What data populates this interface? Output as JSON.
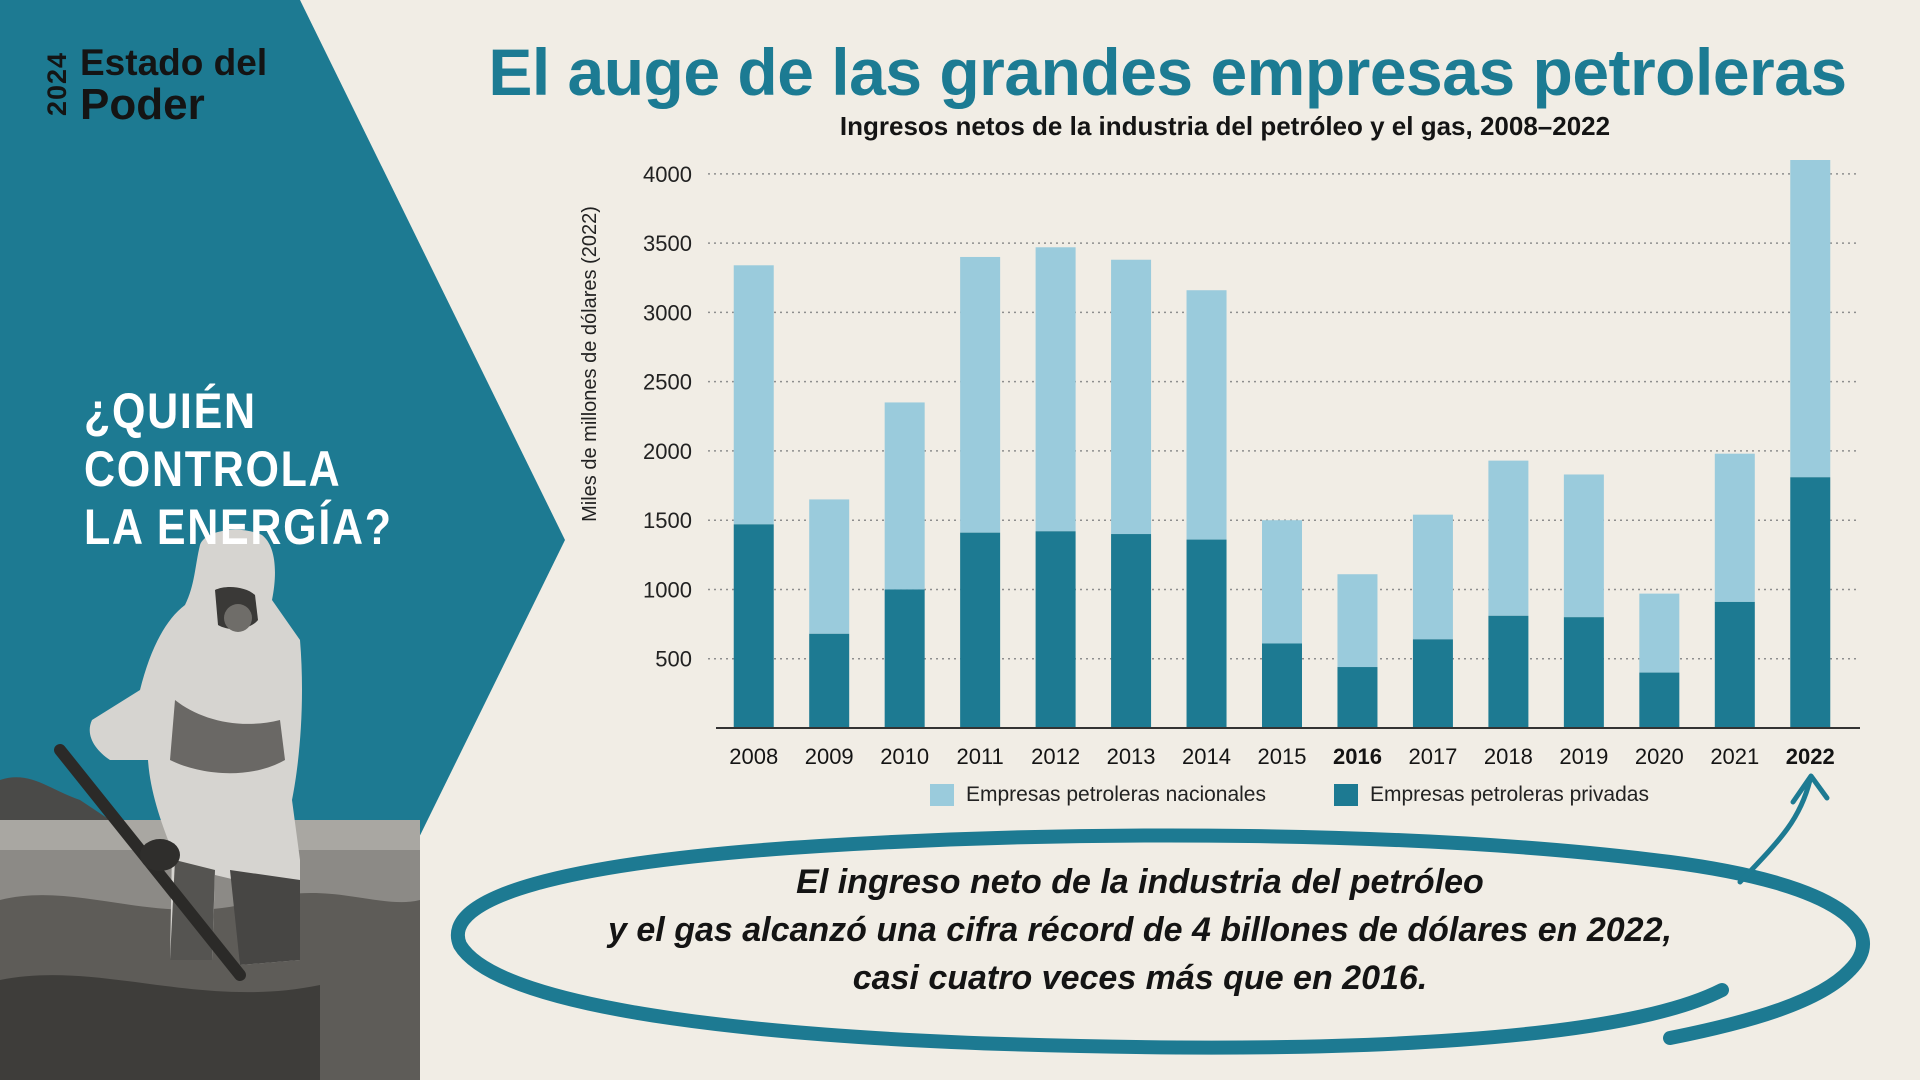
{
  "brand": {
    "year": "2024",
    "line1": "Estado del",
    "line2": "Poder"
  },
  "question": {
    "line1": "¿QUIÉN CONTROLA",
    "line2": "LA ENERGÍA?"
  },
  "colors": {
    "accent": "#1c7b93",
    "private": "#1d7a92",
    "national": "#9acbdc",
    "background": "#f1ede5",
    "text": "#141414"
  },
  "chart_data": {
    "type": "bar",
    "stacked": true,
    "title": "El auge de las grandes empresas petroleras",
    "subtitle": "Ingresos netos de la industria del petróleo y el gas, 2008–2022",
    "ylabel": "Miles de millones de dólares (2022)",
    "xlabel": "",
    "ylim": [
      0,
      4100
    ],
    "yticks": [
      500,
      1000,
      1500,
      2000,
      2500,
      3000,
      3500,
      4000
    ],
    "grid": "horizontal dotted",
    "legend_position": "bottom",
    "categories": [
      "2008",
      "2009",
      "2010",
      "2011",
      "2012",
      "2013",
      "2014",
      "2015",
      "2016",
      "2017",
      "2018",
      "2019",
      "2020",
      "2021",
      "2022"
    ],
    "highlighted_categories": [
      "2016",
      "2022"
    ],
    "series": [
      {
        "name": "Empresas petroleras privadas",
        "color": "#1d7a92",
        "values": [
          1470,
          680,
          1000,
          1410,
          1420,
          1400,
          1360,
          610,
          440,
          640,
          810,
          800,
          400,
          910,
          1810
        ]
      },
      {
        "name": "Empresas petroleras nacionales",
        "color": "#9acbdc",
        "values": [
          1870,
          970,
          1350,
          1990,
          2050,
          1980,
          1800,
          890,
          670,
          900,
          1120,
          1030,
          570,
          1070,
          2290
        ]
      }
    ],
    "legend": [
      "Empresas petroleras nacionales",
      "Empresas petroleras privadas"
    ]
  },
  "note": {
    "line1": "El ingreso neto de la industria del petróleo",
    "line2": "y el gas alcanzó una cifra récord de 4 billones de dólares en 2022,",
    "line3": "casi cuatro veces más que en 2016."
  }
}
